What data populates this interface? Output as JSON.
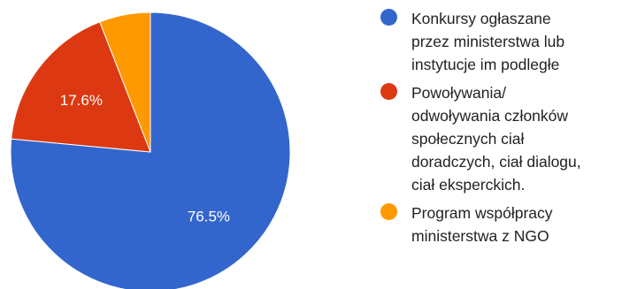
{
  "colors": {
    "blue": "#3366cc",
    "red": "#dc3912",
    "orange": "#ff9900"
  },
  "chart_data": {
    "type": "pie",
    "labels": [
      "Konkursy ogłaszane\nprzez ministerstwa lub\ninstytucje im podległe",
      "Powoływania/\nodwoływania członków\nspołecznych ciał\ndoradczych, ciał dialogu,\nciał eksperckich.",
      "Program współpracy\nministerstwa z NGO"
    ],
    "values": [
      76.5,
      17.6,
      5.9
    ],
    "slice_labels": [
      "76.5%",
      "17.6%",
      ""
    ],
    "colors": [
      "#3366cc",
      "#dc3912",
      "#ff9900"
    ],
    "legend_position": "right"
  }
}
